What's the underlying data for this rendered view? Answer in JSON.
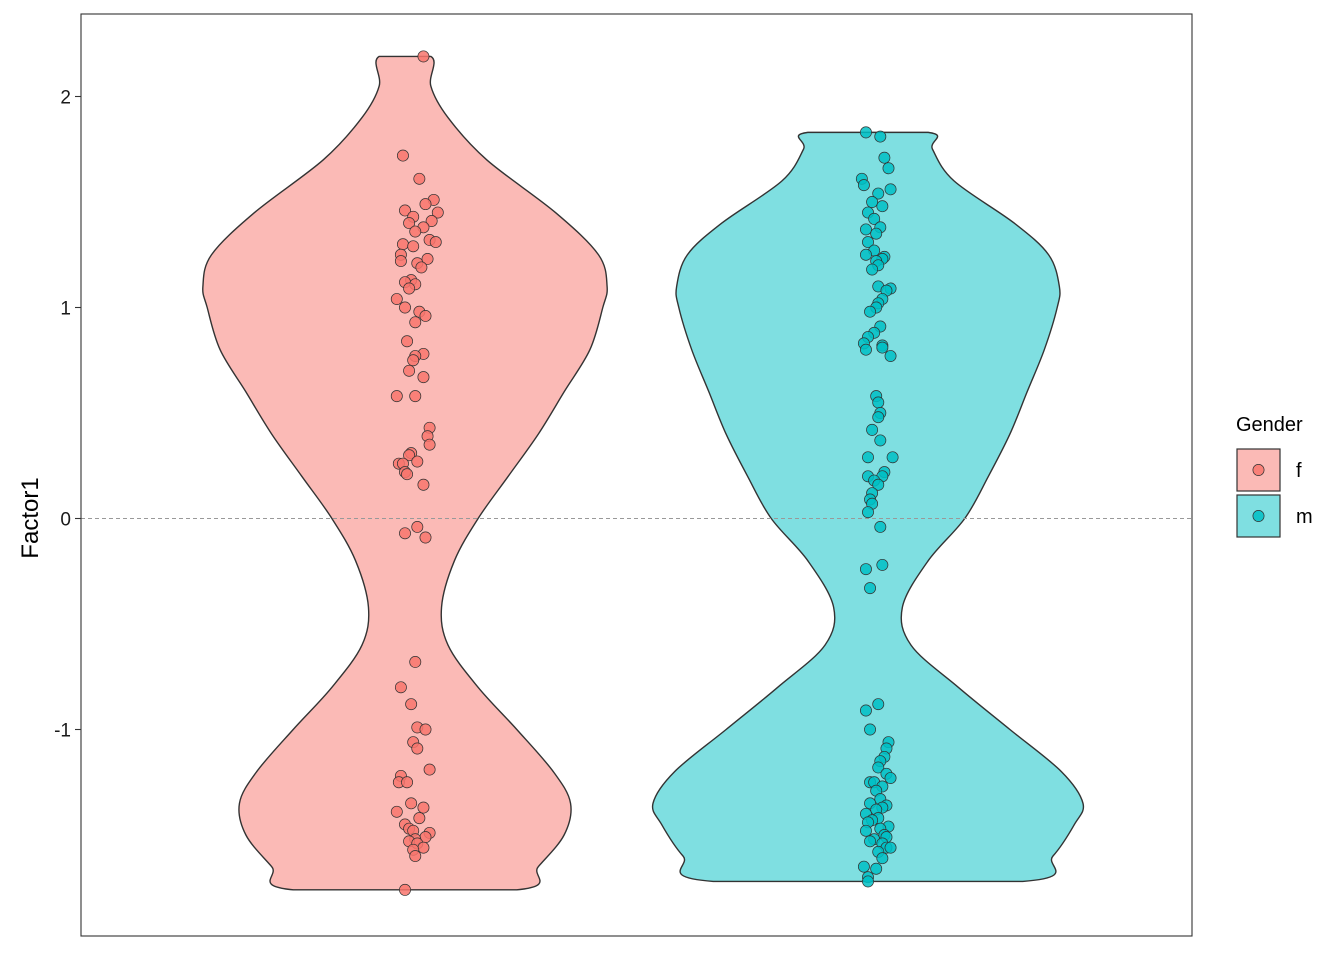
{
  "chart_data": {
    "type": "violin",
    "title": "",
    "xlabel": "",
    "ylabel": "Factor1",
    "ylim": [
      -1.98,
      2.4
    ],
    "yticks": [
      -1,
      0,
      1,
      2
    ],
    "ytick_labels": [
      "-1",
      "0",
      "1",
      "2"
    ],
    "reference_line": {
      "y": 0,
      "style": "dashed"
    },
    "grid": false,
    "legend": {
      "title": "Gender",
      "position": "right",
      "entries": [
        {
          "label": "f",
          "fill": "#F8766D"
        },
        {
          "label": "m",
          "fill": "#00BFC4"
        }
      ]
    },
    "series": [
      {
        "name": "f",
        "fill": "#F8766D",
        "range": [
          -1.76,
          2.19
        ],
        "density_profile": [
          [
            -1.76,
            0.52
          ],
          [
            -1.65,
            0.62
          ],
          [
            -1.5,
            0.74
          ],
          [
            -1.35,
            0.77
          ],
          [
            -1.2,
            0.69
          ],
          [
            -1.0,
            0.52
          ],
          [
            -0.8,
            0.34
          ],
          [
            -0.6,
            0.2
          ],
          [
            -0.42,
            0.17
          ],
          [
            -0.2,
            0.23
          ],
          [
            0.0,
            0.34
          ],
          [
            0.2,
            0.48
          ],
          [
            0.4,
            0.62
          ],
          [
            0.6,
            0.74
          ],
          [
            0.8,
            0.86
          ],
          [
            1.0,
            0.92
          ],
          [
            1.1,
            0.94
          ],
          [
            1.25,
            0.9
          ],
          [
            1.45,
            0.7
          ],
          [
            1.7,
            0.38
          ],
          [
            1.9,
            0.2
          ],
          [
            2.05,
            0.12
          ],
          [
            2.19,
            0.12
          ]
        ],
        "points": [
          [
            2.19,
            0.09
          ],
          [
            1.72,
            -0.01
          ],
          [
            1.61,
            0.07
          ],
          [
            1.51,
            0.14
          ],
          [
            1.49,
            0.1
          ],
          [
            1.46,
            0.0
          ],
          [
            1.45,
            0.16
          ],
          [
            1.43,
            0.04
          ],
          [
            1.41,
            0.13
          ],
          [
            1.4,
            0.02
          ],
          [
            1.38,
            0.09
          ],
          [
            1.36,
            0.05
          ],
          [
            1.32,
            0.12
          ],
          [
            1.31,
            0.15
          ],
          [
            1.3,
            -0.01
          ],
          [
            1.29,
            0.04
          ],
          [
            1.25,
            -0.02
          ],
          [
            1.23,
            0.11
          ],
          [
            1.22,
            -0.02
          ],
          [
            1.21,
            0.06
          ],
          [
            1.19,
            0.08
          ],
          [
            1.13,
            0.03
          ],
          [
            1.12,
            0.0
          ],
          [
            1.11,
            0.05
          ],
          [
            1.09,
            0.02
          ],
          [
            1.04,
            -0.04
          ],
          [
            1.0,
            0.0
          ],
          [
            0.98,
            0.07
          ],
          [
            0.96,
            0.1
          ],
          [
            0.93,
            0.05
          ],
          [
            0.84,
            0.01
          ],
          [
            0.78,
            0.09
          ],
          [
            0.77,
            0.05
          ],
          [
            0.75,
            0.04
          ],
          [
            0.7,
            0.02
          ],
          [
            0.67,
            0.09
          ],
          [
            0.58,
            -0.04
          ],
          [
            0.58,
            0.05
          ],
          [
            0.43,
            0.12
          ],
          [
            0.39,
            0.11
          ],
          [
            0.35,
            0.12
          ],
          [
            0.31,
            0.03
          ],
          [
            0.3,
            0.02
          ],
          [
            0.27,
            0.06
          ],
          [
            0.26,
            -0.03
          ],
          [
            0.26,
            -0.01
          ],
          [
            0.22,
            0.0
          ],
          [
            0.21,
            0.01
          ],
          [
            0.16,
            0.09
          ],
          [
            -0.04,
            0.06
          ],
          [
            -0.07,
            0.0
          ],
          [
            -0.09,
            0.1
          ],
          [
            -0.68,
            0.05
          ],
          [
            -0.8,
            -0.02
          ],
          [
            -0.88,
            0.03
          ],
          [
            -0.99,
            0.06
          ],
          [
            -1.0,
            0.1
          ],
          [
            -1.06,
            0.04
          ],
          [
            -1.09,
            0.06
          ],
          [
            -1.19,
            0.12
          ],
          [
            -1.22,
            -0.02
          ],
          [
            -1.25,
            -0.03
          ],
          [
            -1.25,
            0.01
          ],
          [
            -1.35,
            0.03
          ],
          [
            -1.37,
            0.09
          ],
          [
            -1.39,
            -0.04
          ],
          [
            -1.42,
            0.07
          ],
          [
            -1.45,
            0.0
          ],
          [
            -1.47,
            0.02
          ],
          [
            -1.48,
            0.04
          ],
          [
            -1.49,
            0.12
          ],
          [
            -1.51,
            0.1
          ],
          [
            -1.52,
            0.05
          ],
          [
            -1.53,
            0.02
          ],
          [
            -1.54,
            0.06
          ],
          [
            -1.56,
            0.09
          ],
          [
            -1.57,
            0.04
          ],
          [
            -1.6,
            0.05
          ],
          [
            -1.76,
            0.0
          ]
        ]
      },
      {
        "name": "m",
        "fill": "#00BFC4",
        "range": [
          -1.72,
          1.83
        ],
        "density_profile": [
          [
            -1.72,
            0.72
          ],
          [
            -1.6,
            0.86
          ],
          [
            -1.45,
            0.96
          ],
          [
            -1.35,
            1.0
          ],
          [
            -1.2,
            0.9
          ],
          [
            -1.0,
            0.66
          ],
          [
            -0.8,
            0.42
          ],
          [
            -0.6,
            0.2
          ],
          [
            -0.42,
            0.16
          ],
          [
            -0.2,
            0.28
          ],
          [
            0.0,
            0.45
          ],
          [
            0.2,
            0.56
          ],
          [
            0.4,
            0.66
          ],
          [
            0.6,
            0.74
          ],
          [
            0.8,
            0.82
          ],
          [
            1.0,
            0.88
          ],
          [
            1.1,
            0.89
          ],
          [
            1.25,
            0.84
          ],
          [
            1.4,
            0.68
          ],
          [
            1.6,
            0.4
          ],
          [
            1.75,
            0.3
          ],
          [
            1.83,
            0.28
          ]
        ],
        "points": [
          [
            1.83,
            -0.01
          ],
          [
            1.81,
            0.06
          ],
          [
            1.71,
            0.08
          ],
          [
            1.66,
            0.1
          ],
          [
            1.61,
            -0.03
          ],
          [
            1.58,
            -0.02
          ],
          [
            1.56,
            0.11
          ],
          [
            1.54,
            0.05
          ],
          [
            1.5,
            0.02
          ],
          [
            1.48,
            0.07
          ],
          [
            1.45,
            0.0
          ],
          [
            1.42,
            0.03
          ],
          [
            1.38,
            0.06
          ],
          [
            1.37,
            -0.01
          ],
          [
            1.35,
            0.04
          ],
          [
            1.31,
            0.0
          ],
          [
            1.27,
            0.03
          ],
          [
            1.25,
            -0.01
          ],
          [
            1.24,
            0.08
          ],
          [
            1.23,
            0.07
          ],
          [
            1.22,
            0.04
          ],
          [
            1.2,
            0.05
          ],
          [
            1.18,
            0.02
          ],
          [
            1.1,
            0.05
          ],
          [
            1.09,
            0.11
          ],
          [
            1.08,
            0.09
          ],
          [
            1.04,
            0.07
          ],
          [
            1.02,
            0.05
          ],
          [
            1.0,
            0.04
          ],
          [
            0.98,
            0.01
          ],
          [
            0.91,
            0.06
          ],
          [
            0.88,
            0.03
          ],
          [
            0.86,
            0.0
          ],
          [
            0.82,
            0.07
          ],
          [
            0.83,
            -0.02
          ],
          [
            0.8,
            -0.01
          ],
          [
            0.81,
            0.07
          ],
          [
            0.77,
            0.11
          ],
          [
            0.58,
            0.04
          ],
          [
            0.55,
            0.05
          ],
          [
            0.5,
            0.06
          ],
          [
            0.48,
            0.05
          ],
          [
            0.42,
            0.02
          ],
          [
            0.37,
            0.06
          ],
          [
            0.29,
            0.0
          ],
          [
            0.29,
            0.12
          ],
          [
            0.22,
            0.08
          ],
          [
            0.2,
            0.07
          ],
          [
            0.2,
            0.0
          ],
          [
            0.18,
            0.03
          ],
          [
            0.16,
            0.05
          ],
          [
            0.12,
            0.02
          ],
          [
            0.09,
            0.01
          ],
          [
            0.07,
            0.02
          ],
          [
            0.03,
            0.0
          ],
          [
            -0.04,
            0.06
          ],
          [
            -0.22,
            0.07
          ],
          [
            -0.24,
            -0.01
          ],
          [
            -0.33,
            0.01
          ],
          [
            -0.88,
            0.05
          ],
          [
            -0.91,
            -0.01
          ],
          [
            -1.0,
            0.01
          ],
          [
            -1.06,
            0.1
          ],
          [
            -1.09,
            0.09
          ],
          [
            -1.13,
            0.08
          ],
          [
            -1.15,
            0.06
          ],
          [
            -1.18,
            0.05
          ],
          [
            -1.21,
            0.09
          ],
          [
            -1.23,
            0.11
          ],
          [
            -1.25,
            0.01
          ],
          [
            -1.25,
            0.03
          ],
          [
            -1.27,
            0.07
          ],
          [
            -1.29,
            0.04
          ],
          [
            -1.33,
            0.06
          ],
          [
            -1.36,
            0.09
          ],
          [
            -1.35,
            0.01
          ],
          [
            -1.37,
            0.07
          ],
          [
            -1.38,
            0.04
          ],
          [
            -1.4,
            -0.01
          ],
          [
            -1.42,
            0.05
          ],
          [
            -1.43,
            0.02
          ],
          [
            -1.44,
            0.0
          ],
          [
            -1.46,
            0.1
          ],
          [
            -1.47,
            0.06
          ],
          [
            -1.48,
            -0.01
          ],
          [
            -1.5,
            0.08
          ],
          [
            -1.51,
            0.09
          ],
          [
            -1.52,
            0.03
          ],
          [
            -1.53,
            0.01
          ],
          [
            -1.54,
            0.07
          ],
          [
            -1.56,
            0.09
          ],
          [
            -1.56,
            0.11
          ],
          [
            -1.58,
            0.05
          ],
          [
            -1.61,
            0.07
          ],
          [
            -1.65,
            -0.02
          ],
          [
            -1.66,
            0.04
          ],
          [
            -1.7,
            0.0
          ],
          [
            -1.72,
            0.0
          ]
        ]
      }
    ]
  }
}
